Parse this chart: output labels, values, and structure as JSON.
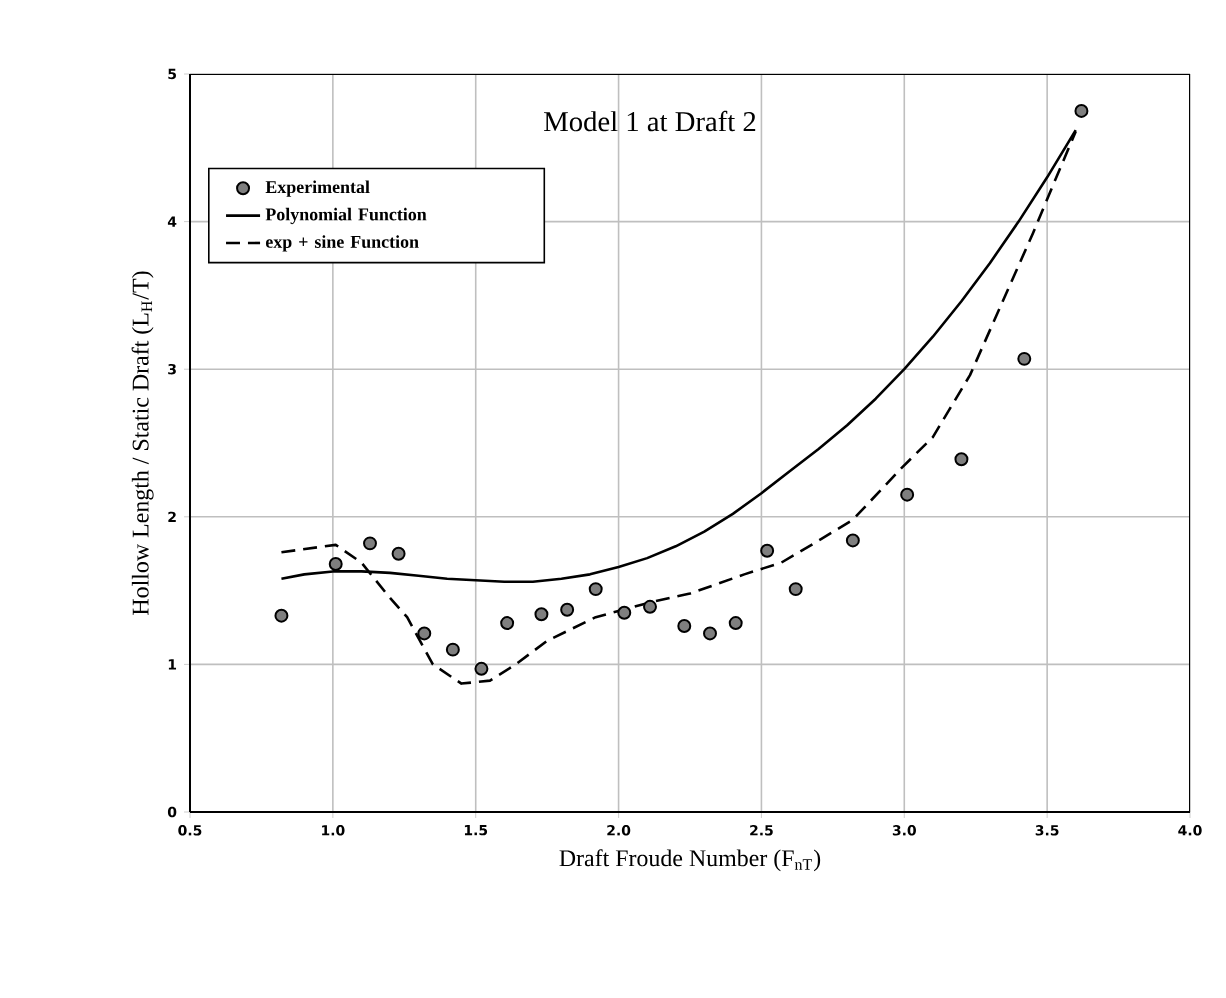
{
  "chart_data": {
    "type": "scatter",
    "title": "Model 1 at Draft 2",
    "xlabel": "Draft Froude Number (F$_{nT}$)",
    "ylabel": "Hollow Length / Static Draft (L$_{H}$/T)",
    "xlim": [
      0.5,
      4.0
    ],
    "ylim": [
      0,
      5
    ],
    "xticks": [
      {
        "value": 0.5,
        "label": "0.5"
      },
      {
        "value": 1.0,
        "label": "1.0"
      },
      {
        "value": 1.5,
        "label": "1.5"
      },
      {
        "value": 2.0,
        "label": "2.0"
      },
      {
        "value": 2.5,
        "label": "2.5"
      },
      {
        "value": 3.0,
        "label": "3.0"
      },
      {
        "value": 3.5,
        "label": "3.5"
      },
      {
        "value": 4.0,
        "label": "4.0"
      }
    ],
    "yticks": [
      0,
      1,
      2,
      3,
      4,
      5
    ],
    "grid": true,
    "legend": "top left",
    "series": [
      {
        "name": "Experimental",
        "marker": "circle",
        "color": "#7f7f7f",
        "x": [
          0.82,
          1.01,
          1.13,
          1.23,
          1.32,
          1.42,
          1.52,
          1.61,
          1.73,
          1.82,
          1.92,
          2.02,
          2.11,
          2.23,
          2.32,
          2.41,
          2.52,
          2.62,
          2.82,
          3.01,
          3.2,
          3.42,
          3.62
        ],
        "values": [
          1.33,
          1.68,
          1.82,
          1.75,
          1.21,
          1.1,
          0.97,
          1.28,
          1.34,
          1.37,
          1.51,
          1.35,
          1.39,
          1.26,
          1.21,
          1.28,
          1.77,
          1.51,
          1.84,
          2.15,
          2.39,
          3.07,
          4.75
        ]
      },
      {
        "name": "Polynomial Function",
        "type": "line",
        "line_style": "solid",
        "marker": "none",
        "color": "#000000",
        "x": [
          0.82,
          0.9,
          1.0,
          1.1,
          1.2,
          1.3,
          1.4,
          1.5,
          1.6,
          1.7,
          1.8,
          1.9,
          2.0,
          2.1,
          2.2,
          2.3,
          2.4,
          2.5,
          2.6,
          2.7,
          2.8,
          2.9,
          3.0,
          3.1,
          3.2,
          3.3,
          3.4,
          3.5,
          3.6
        ],
        "values": [
          1.58,
          1.61,
          1.63,
          1.63,
          1.62,
          1.6,
          1.58,
          1.57,
          1.56,
          1.56,
          1.58,
          1.61,
          1.66,
          1.72,
          1.8,
          1.9,
          2.02,
          2.16,
          2.31,
          2.46,
          2.62,
          2.8,
          3.0,
          3.22,
          3.46,
          3.72,
          4.0,
          4.3,
          4.62
        ]
      },
      {
        "name": "exp + sine Function",
        "type": "line",
        "line_style": "dashed",
        "marker": "none",
        "color": "#000000",
        "x": [
          0.82,
          1.01,
          1.1,
          1.2,
          1.26,
          1.35,
          1.45,
          1.55,
          1.64,
          1.75,
          1.92,
          2.11,
          2.25,
          2.44,
          2.57,
          2.71,
          2.82,
          2.99,
          3.1,
          3.23,
          3.34,
          3.45,
          3.53,
          3.6
        ],
        "values": [
          1.76,
          1.81,
          1.69,
          1.45,
          1.32,
          1.0,
          0.87,
          0.89,
          1.0,
          1.16,
          1.32,
          1.42,
          1.48,
          1.61,
          1.69,
          1.85,
          1.98,
          2.33,
          2.54,
          2.96,
          3.44,
          3.92,
          4.29,
          4.61
        ]
      }
    ]
  }
}
